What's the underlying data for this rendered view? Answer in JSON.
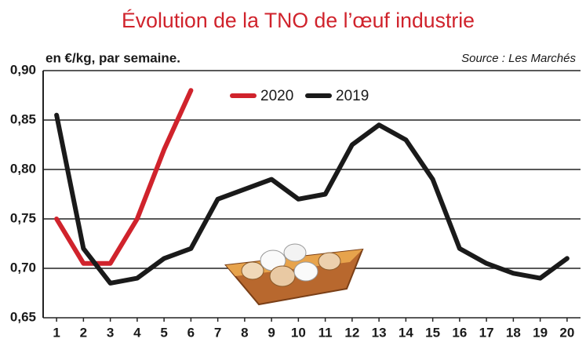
{
  "chart_data": {
    "type": "line",
    "title": "Évolution de la TNO de l’œuf industrie",
    "subtitle": "en €/kg, par semaine.",
    "source": "Source : Les Marchés",
    "x": [
      1,
      2,
      3,
      4,
      5,
      6,
      7,
      8,
      9,
      10,
      11,
      12,
      13,
      14,
      15,
      16,
      17,
      18,
      19,
      20
    ],
    "series": [
      {
        "name": "2020",
        "color": "#d0232c",
        "values": [
          0.75,
          0.705,
          0.705,
          0.75,
          0.82,
          0.88,
          null,
          null,
          null,
          null,
          null,
          null,
          null,
          null,
          null,
          null,
          null,
          null,
          null,
          null
        ]
      },
      {
        "name": "2019",
        "color": "#1a1a1a",
        "values": [
          0.855,
          0.72,
          0.685,
          0.69,
          0.71,
          0.72,
          0.77,
          0.78,
          0.79,
          0.77,
          0.775,
          0.825,
          0.845,
          0.83,
          0.79,
          0.72,
          0.705,
          0.695,
          0.69,
          0.71
        ]
      }
    ],
    "xlim": [
      0.5,
      20.5
    ],
    "xticks": [
      1,
      2,
      3,
      4,
      5,
      6,
      7,
      8,
      9,
      10,
      11,
      12,
      13,
      14,
      15,
      16,
      17,
      18,
      19,
      20
    ],
    "ylim": [
      0.65,
      0.9
    ],
    "yticks": [
      {
        "value": 0.65,
        "label": "0,65"
      },
      {
        "value": 0.7,
        "label": "0,70"
      },
      {
        "value": 0.75,
        "label": "0,75"
      },
      {
        "value": 0.8,
        "label": "0,80"
      },
      {
        "value": 0.85,
        "label": "0,85"
      },
      {
        "value": 0.9,
        "label": "0,90"
      }
    ],
    "grid": true
  }
}
